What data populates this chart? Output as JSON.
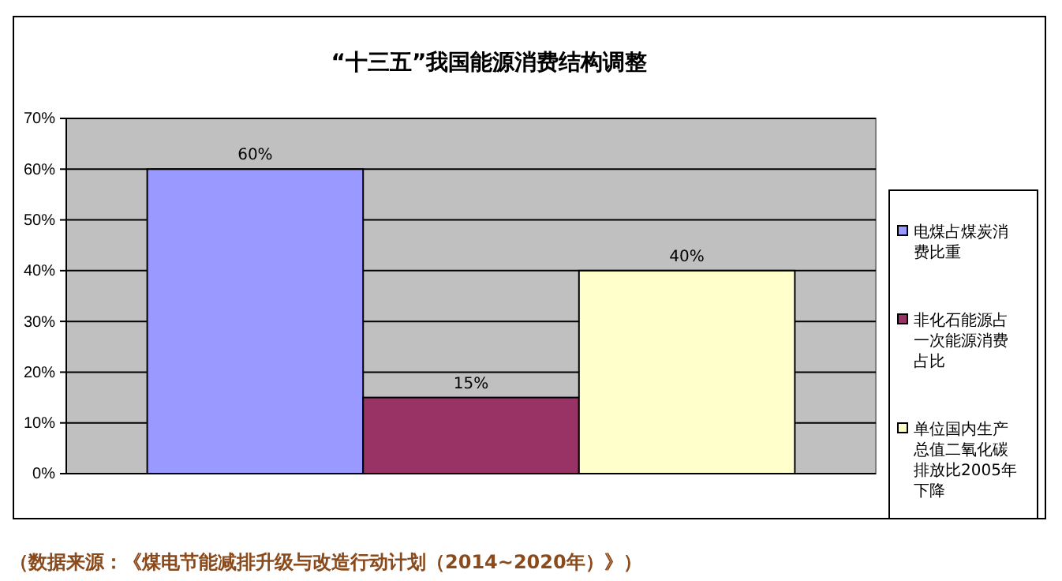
{
  "chart_data": {
    "type": "bar",
    "title": "“十三五”我国能源消费结构调整",
    "categories": [
      null
    ],
    "series": [
      {
        "name": "电煤占煤炭消费比重",
        "color": "#9999ff",
        "values": [
          60
        ]
      },
      {
        "name": "非化石能源占一次能源消费占比",
        "color": "#993366",
        "values": [
          15
        ]
      },
      {
        "name": "单位国内生产总值二氧化碳排放比2005年下降",
        "color": "#ffffcc",
        "values": [
          40
        ]
      }
    ],
    "value_labels": [
      [
        "60%"
      ],
      [
        "15%"
      ],
      [
        "40%"
      ]
    ],
    "ylim": [
      0,
      70
    ],
    "yticks": [
      {
        "value": 0,
        "label": "0%"
      },
      {
        "value": 10,
        "label": "10%"
      },
      {
        "value": 20,
        "label": "20%"
      },
      {
        "value": 30,
        "label": "30%"
      },
      {
        "value": 40,
        "label": "40%"
      },
      {
        "value": 50,
        "label": "50%"
      },
      {
        "value": 60,
        "label": "60%"
      },
      {
        "value": 70,
        "label": "70%"
      }
    ],
    "grid": "y",
    "legend": "right",
    "annotations": [
      "（数据来源：《煤电节能减排升级与改造行动计划（2014~2020年）》）"
    ]
  }
}
